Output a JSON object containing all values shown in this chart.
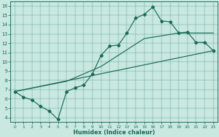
{
  "xlabel": "Humidex (Indice chaleur)",
  "bg_color": "#c8e8e0",
  "line_color": "#1a6b5a",
  "xlim": [
    -0.5,
    23.5
  ],
  "ylim": [
    3.5,
    16.5
  ],
  "xticks": [
    0,
    1,
    2,
    3,
    4,
    5,
    6,
    7,
    8,
    9,
    10,
    11,
    12,
    13,
    14,
    15,
    16,
    17,
    18,
    19,
    20,
    21,
    22,
    23
  ],
  "yticks": [
    4,
    5,
    6,
    7,
    8,
    9,
    10,
    11,
    12,
    13,
    14,
    15,
    16
  ],
  "zigzag_x": [
    0,
    1,
    2,
    3,
    4,
    5,
    6,
    7,
    8,
    9,
    10,
    11,
    12,
    13,
    14,
    15,
    16,
    17,
    18,
    19,
    20,
    21,
    22,
    23
  ],
  "zigzag_y": [
    6.8,
    6.2,
    5.9,
    5.2,
    4.7,
    3.8,
    6.8,
    7.2,
    7.5,
    8.7,
    10.7,
    11.7,
    11.8,
    13.1,
    14.7,
    15.1,
    15.9,
    14.4,
    14.3,
    13.1,
    13.2,
    12.1,
    12.1,
    11.2
  ],
  "line1_x": [
    0,
    23
  ],
  "line1_y": [
    6.8,
    11.2
  ],
  "line2_x": [
    0,
    6,
    10,
    15,
    19,
    23
  ],
  "line2_y": [
    6.8,
    7.9,
    9.5,
    12.5,
    13.1,
    13.1
  ]
}
